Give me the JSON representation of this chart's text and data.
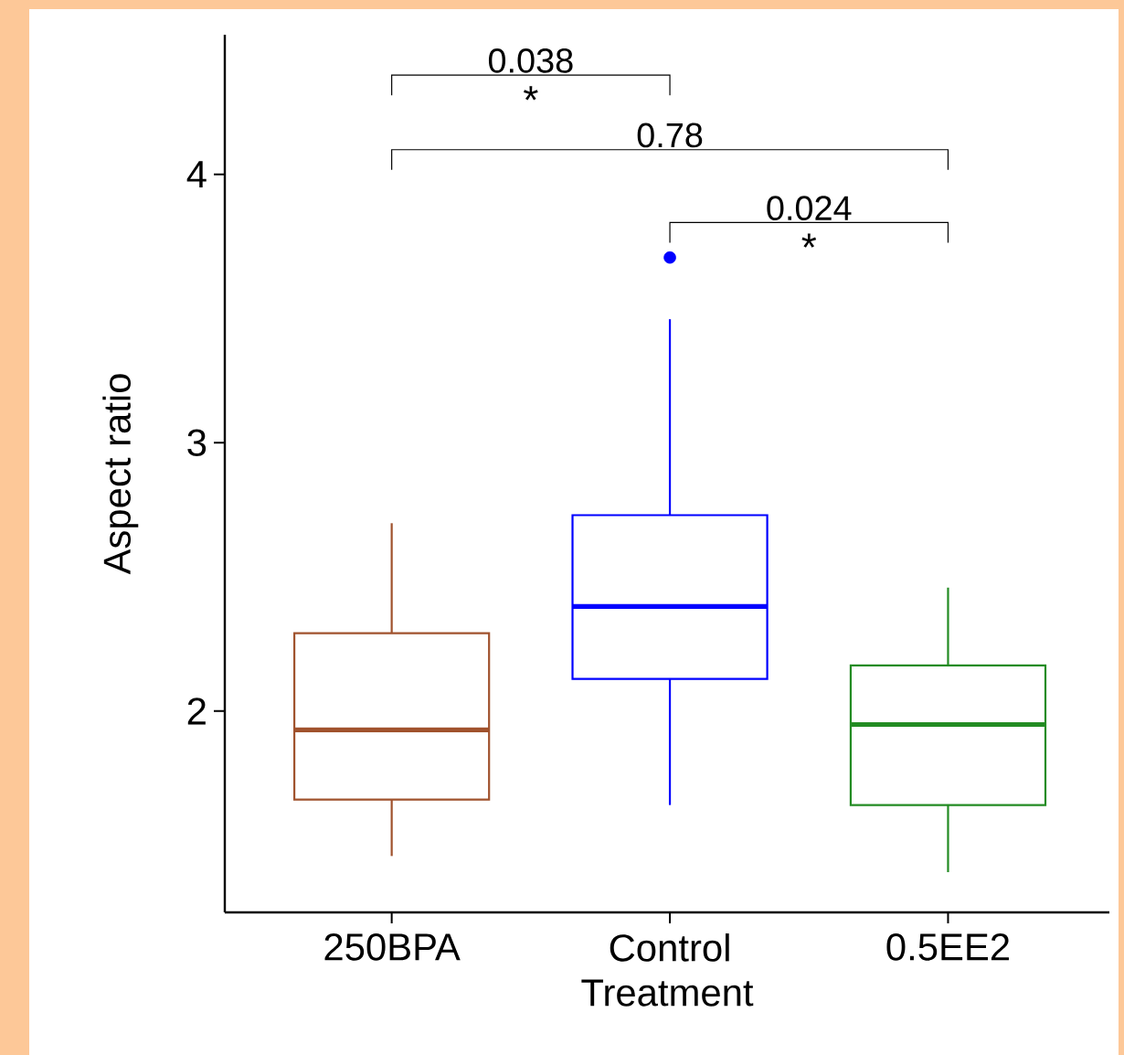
{
  "chart_data": {
    "type": "box",
    "xlabel": "Treatment",
    "ylabel": "Aspect ratio",
    "categories": [
      "250BPA",
      "Control",
      "0.5EE2"
    ],
    "colors": [
      "#a0522d",
      "#0000ff",
      "#228b22"
    ],
    "boxes": [
      {
        "low": 1.46,
        "q1": 1.67,
        "median": 1.93,
        "q3": 2.29,
        "high": 2.7
      },
      {
        "low": 1.65,
        "q1": 2.12,
        "median": 2.39,
        "q3": 2.73,
        "high": 3.46,
        "outliers": [
          3.69
        ]
      },
      {
        "low": 1.4,
        "q1": 1.65,
        "median": 1.95,
        "q3": 2.17,
        "high": 2.46
      }
    ],
    "ylim": [
      1.25,
      4.52
    ],
    "yticks": [
      2,
      3,
      4
    ],
    "annotations": [
      "0.038",
      "*",
      "0.78",
      "0.024",
      "*"
    ]
  }
}
